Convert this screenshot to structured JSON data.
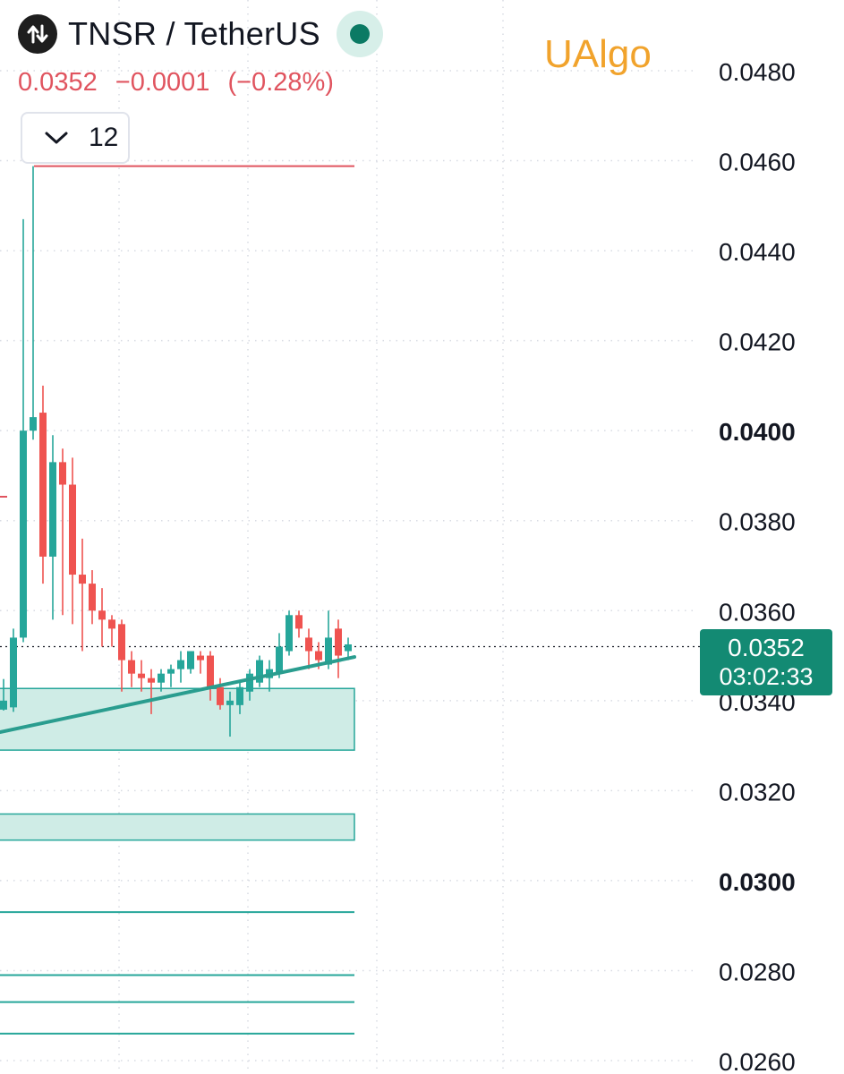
{
  "header": {
    "symbol_icon": "split-arrows-icon",
    "title": "TNSR / TetherUS",
    "status_icon": "market-open-dot-icon",
    "last_price": "0.0352",
    "change": "−0.0001",
    "change_pct": "(−0.28%)",
    "interval_icon": "chevron-down-icon",
    "interval": "12"
  },
  "watermark": "UAlgo",
  "price_badge": {
    "price": "0.0352",
    "countdown": "03:02:33"
  },
  "colors": {
    "up": "#26a69a",
    "down": "#ef5350",
    "zone_fill": "#cfece6",
    "zone_border": "#26a69a",
    "trendline": "#2a9d8f",
    "resistance": "#e0545f",
    "badge": "#138a73",
    "watermark": "#f1a32c",
    "grid": "#d8dbe3"
  },
  "chart_data": {
    "type": "candlestick",
    "y_axis": {
      "range": [
        0.0258,
        0.0484
      ],
      "ticks": [
        "0.0480",
        "0.0460",
        "0.0440",
        "0.0420",
        "0.0400",
        "0.0380",
        "0.0360",
        "0.0340",
        "0.0320",
        "0.0300",
        "0.0280",
        "0.0260"
      ],
      "bold_ticks": [
        "0.0400",
        "0.0300"
      ],
      "grid": true
    },
    "candles": [
      {
        "o": 0.0338,
        "h": 0.03448,
        "l": 0.03378,
        "c": 0.034
      },
      {
        "o": 0.03385,
        "h": 0.0356,
        "l": 0.03375,
        "c": 0.0354
      },
      {
        "o": 0.0354,
        "h": 0.0447,
        "l": 0.0353,
        "c": 0.04
      },
      {
        "o": 0.04,
        "h": 0.04588,
        "l": 0.0398,
        "c": 0.0403
      },
      {
        "o": 0.0404,
        "h": 0.041,
        "l": 0.0366,
        "c": 0.0372
      },
      {
        "o": 0.0372,
        "h": 0.0399,
        "l": 0.0358,
        "c": 0.0393
      },
      {
        "o": 0.0393,
        "h": 0.0396,
        "l": 0.0359,
        "c": 0.0388
      },
      {
        "o": 0.0388,
        "h": 0.0394,
        "l": 0.0357,
        "c": 0.0368
      },
      {
        "o": 0.0368,
        "h": 0.0376,
        "l": 0.0351,
        "c": 0.0366
      },
      {
        "o": 0.0366,
        "h": 0.0369,
        "l": 0.0357,
        "c": 0.036
      },
      {
        "o": 0.036,
        "h": 0.0365,
        "l": 0.0352,
        "c": 0.0358
      },
      {
        "o": 0.0358,
        "h": 0.0359,
        "l": 0.0352,
        "c": 0.0356
      },
      {
        "o": 0.0357,
        "h": 0.0358,
        "l": 0.0342,
        "c": 0.0349
      },
      {
        "o": 0.0349,
        "h": 0.0351,
        "l": 0.0343,
        "c": 0.0346
      },
      {
        "o": 0.0346,
        "h": 0.0349,
        "l": 0.0342,
        "c": 0.0345
      },
      {
        "o": 0.0345,
        "h": 0.0347,
        "l": 0.0337,
        "c": 0.0344
      },
      {
        "o": 0.0344,
        "h": 0.0347,
        "l": 0.0342,
        "c": 0.0346
      },
      {
        "o": 0.0346,
        "h": 0.0348,
        "l": 0.0343,
        "c": 0.0347
      },
      {
        "o": 0.0347,
        "h": 0.0351,
        "l": 0.0344,
        "c": 0.0349
      },
      {
        "o": 0.0347,
        "h": 0.0351,
        "l": 0.0346,
        "c": 0.0351
      },
      {
        "o": 0.035,
        "h": 0.0351,
        "l": 0.0346,
        "c": 0.0349
      },
      {
        "o": 0.035,
        "h": 0.0351,
        "l": 0.034,
        "c": 0.0343
      },
      {
        "o": 0.0343,
        "h": 0.0345,
        "l": 0.0338,
        "c": 0.0339
      },
      {
        "o": 0.0339,
        "h": 0.0342,
        "l": 0.0332,
        "c": 0.034
      },
      {
        "o": 0.0339,
        "h": 0.0344,
        "l": 0.0337,
        "c": 0.0343
      },
      {
        "o": 0.0342,
        "h": 0.0347,
        "l": 0.034,
        "c": 0.0346
      },
      {
        "o": 0.0344,
        "h": 0.035,
        "l": 0.0343,
        "c": 0.0349
      },
      {
        "o": 0.0345,
        "h": 0.0349,
        "l": 0.0342,
        "c": 0.0347
      },
      {
        "o": 0.0346,
        "h": 0.0355,
        "l": 0.0345,
        "c": 0.0352
      },
      {
        "o": 0.0351,
        "h": 0.036,
        "l": 0.035,
        "c": 0.0359
      },
      {
        "o": 0.0359,
        "h": 0.036,
        "l": 0.0354,
        "c": 0.0356
      },
      {
        "o": 0.0354,
        "h": 0.0356,
        "l": 0.0347,
        "c": 0.0351
      },
      {
        "o": 0.0351,
        "h": 0.0353,
        "l": 0.0347,
        "c": 0.0349
      },
      {
        "o": 0.0348,
        "h": 0.036,
        "l": 0.0347,
        "c": 0.0354
      },
      {
        "o": 0.0356,
        "h": 0.0358,
        "l": 0.0345,
        "c": 0.035
      },
      {
        "o": 0.0351,
        "h": 0.0354,
        "l": 0.0349,
        "c": 0.03525
      }
    ],
    "current_price": 0.0352,
    "zones": [
      {
        "top": 0.03427,
        "bottom": 0.0329
      },
      {
        "top": 0.03148,
        "bottom": 0.0309
      }
    ],
    "support_lines": [
      0.0293,
      0.0279,
      0.0273,
      0.0266
    ],
    "resistance_line": 0.04588,
    "trendline": {
      "start": 0.0333,
      "end": 0.03497
    }
  }
}
